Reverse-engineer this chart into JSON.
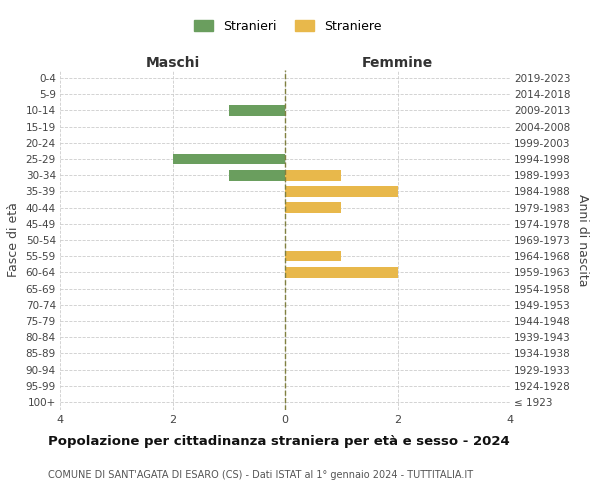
{
  "age_groups": [
    "0-4",
    "5-9",
    "10-14",
    "15-19",
    "20-24",
    "25-29",
    "30-34",
    "35-39",
    "40-44",
    "45-49",
    "50-54",
    "55-59",
    "60-64",
    "65-69",
    "70-74",
    "75-79",
    "80-84",
    "85-89",
    "90-94",
    "95-99",
    "100+"
  ],
  "birth_years": [
    "2019-2023",
    "2014-2018",
    "2009-2013",
    "2004-2008",
    "1999-2003",
    "1994-1998",
    "1989-1993",
    "1984-1988",
    "1979-1983",
    "1974-1978",
    "1969-1973",
    "1964-1968",
    "1959-1963",
    "1954-1958",
    "1949-1953",
    "1944-1948",
    "1939-1943",
    "1934-1938",
    "1929-1933",
    "1924-1928",
    "≤ 1923"
  ],
  "stranieri": [
    0,
    0,
    1,
    0,
    0,
    2,
    1,
    0,
    0,
    0,
    0,
    0,
    0,
    0,
    0,
    0,
    0,
    0,
    0,
    0,
    0
  ],
  "straniere": [
    0,
    0,
    0,
    0,
    0,
    0,
    1,
    2,
    1,
    0,
    0,
    1,
    2,
    0,
    0,
    0,
    0,
    0,
    0,
    0,
    0
  ],
  "stranieri_color": "#6a9e5e",
  "straniere_color": "#e8b84b",
  "xlim": 4,
  "title": "Popolazione per cittadinanza straniera per età e sesso - 2024",
  "subtitle": "COMUNE DI SANT'AGATA DI ESARO (CS) - Dati ISTAT al 1° gennaio 2024 - TUTTITALIA.IT",
  "xlabel_left": "Maschi",
  "xlabel_right": "Femmine",
  "ylabel_left": "Fasce di età",
  "ylabel_right": "Anni di nascita",
  "legend_stranieri": "Stranieri",
  "legend_straniere": "Straniere",
  "bg_color": "#ffffff",
  "grid_color": "#cccccc",
  "axis_line_color": "#808040"
}
